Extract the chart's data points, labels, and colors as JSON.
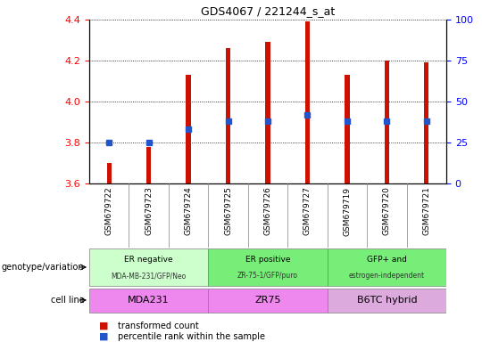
{
  "title": "GDS4067 / 221244_s_at",
  "samples": [
    "GSM679722",
    "GSM679723",
    "GSM679724",
    "GSM679725",
    "GSM679726",
    "GSM679727",
    "GSM679719",
    "GSM679720",
    "GSM679721"
  ],
  "transformed_count": [
    3.7,
    3.78,
    4.13,
    4.26,
    4.29,
    4.39,
    4.13,
    4.2,
    4.19
  ],
  "percentile_pct": [
    25,
    25,
    33,
    38,
    38,
    42,
    38,
    38,
    38
  ],
  "ylim_left": [
    3.6,
    4.4
  ],
  "ylim_right": [
    0,
    100
  ],
  "yticks_left": [
    3.6,
    3.8,
    4.0,
    4.2,
    4.4
  ],
  "yticks_right": [
    0,
    25,
    50,
    75,
    100
  ],
  "bar_color": "#cc1100",
  "dot_color": "#2255cc",
  "bar_bottom": 3.6,
  "bar_width": 0.12,
  "groups": [
    {
      "label_top": "ER negative",
      "label_bot": "MDA-MB-231/GFP/Neo",
      "start": 0,
      "end": 3,
      "color": "#ccffcc"
    },
    {
      "label_top": "ER positive",
      "label_bot": "ZR-75-1/GFP/puro",
      "start": 3,
      "end": 6,
      "color": "#77ee77"
    },
    {
      "label_top": "GFP+ and",
      "label_bot": "estrogen-independent",
      "start": 6,
      "end": 9,
      "color": "#77ee77"
    }
  ],
  "cell_lines": [
    {
      "label": "MDA231",
      "start": 0,
      "end": 3,
      "color": "#ee88ee"
    },
    {
      "label": "ZR75",
      "start": 3,
      "end": 6,
      "color": "#ee88ee"
    },
    {
      "label": "B6TC hybrid",
      "start": 6,
      "end": 9,
      "color": "#ddaadd"
    }
  ],
  "row_label_genotype": "genotype/variation",
  "row_label_cell": "cell line",
  "legend_bar_label": "transformed count",
  "legend_dot_label": "percentile rank within the sample",
  "xtick_bg_color": "#dddddd"
}
